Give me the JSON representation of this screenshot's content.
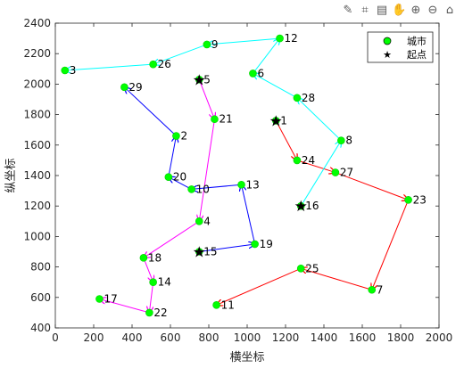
{
  "toolbar": {
    "icons": [
      "brush-icon",
      "data-tip-icon",
      "save-icon",
      "pan-hand-icon",
      "zoom-in-icon",
      "zoom-out-icon",
      "home-icon"
    ]
  },
  "chart_data": {
    "type": "scatter",
    "xlabel": "横坐标",
    "ylabel": "纵坐标",
    "xlim": [
      0,
      2000
    ],
    "ylim": [
      400,
      2400
    ],
    "xticks": [
      0,
      200,
      400,
      600,
      800,
      1000,
      1200,
      1400,
      1600,
      1800,
      2000
    ],
    "yticks": [
      400,
      600,
      800,
      1000,
      1200,
      1400,
      1600,
      1800,
      2000,
      2200,
      2400
    ],
    "grid": false,
    "legend": {
      "position": "top-right",
      "entries": [
        {
          "label": "城市",
          "marker": "circle",
          "color": "#00ff00"
        },
        {
          "label": "起点",
          "marker": "star",
          "color": "#000000"
        }
      ]
    },
    "cities": [
      {
        "id": "1",
        "x": 1150,
        "y": 1760
      },
      {
        "id": "2",
        "x": 630,
        "y": 1660
      },
      {
        "id": "3",
        "x": 50,
        "y": 2090
      },
      {
        "id": "4",
        "x": 750,
        "y": 1100
      },
      {
        "id": "5",
        "x": 750,
        "y": 2030
      },
      {
        "id": "6",
        "x": 1030,
        "y": 2070
      },
      {
        "id": "7",
        "x": 1650,
        "y": 650
      },
      {
        "id": "8",
        "x": 1490,
        "y": 1630
      },
      {
        "id": "9",
        "x": 790,
        "y": 2260
      },
      {
        "id": "10",
        "x": 710,
        "y": 1310
      },
      {
        "id": "11",
        "x": 840,
        "y": 550
      },
      {
        "id": "12",
        "x": 1170,
        "y": 2300
      },
      {
        "id": "13",
        "x": 970,
        "y": 1340
      },
      {
        "id": "14",
        "x": 510,
        "y": 700
      },
      {
        "id": "15",
        "x": 750,
        "y": 900
      },
      {
        "id": "16",
        "x": 1280,
        "y": 1200
      },
      {
        "id": "17",
        "x": 230,
        "y": 590
      },
      {
        "id": "18",
        "x": 460,
        "y": 860
      },
      {
        "id": "19",
        "x": 1040,
        "y": 950
      },
      {
        "id": "20",
        "x": 590,
        "y": 1390
      },
      {
        "id": "21",
        "x": 830,
        "y": 1770
      },
      {
        "id": "22",
        "x": 490,
        "y": 500
      },
      {
        "id": "23",
        "x": 1840,
        "y": 1240
      },
      {
        "id": "24",
        "x": 1260,
        "y": 1500
      },
      {
        "id": "25",
        "x": 1280,
        "y": 790
      },
      {
        "id": "26",
        "x": 510,
        "y": 2130
      },
      {
        "id": "27",
        "x": 1460,
        "y": 1420
      },
      {
        "id": "28",
        "x": 1260,
        "y": 1910
      },
      {
        "id": "29",
        "x": 360,
        "y": 1980
      }
    ],
    "start_points": [
      "1",
      "5",
      "15",
      "16"
    ],
    "routes": [
      {
        "color": "#ff0000",
        "path": [
          "1",
          "24",
          "27",
          "23",
          "7",
          "25",
          "11"
        ]
      },
      {
        "color": "#ff00ff",
        "path": [
          "5",
          "21",
          "4",
          "18",
          "14",
          "22",
          "17"
        ]
      },
      {
        "color": "#0000ff",
        "path": [
          "15",
          "19",
          "13",
          "10",
          "20",
          "2",
          "29"
        ]
      },
      {
        "color": "#00ffff",
        "path": [
          "16",
          "8",
          "28",
          "6",
          "12",
          "9",
          "26",
          "3"
        ]
      }
    ]
  }
}
